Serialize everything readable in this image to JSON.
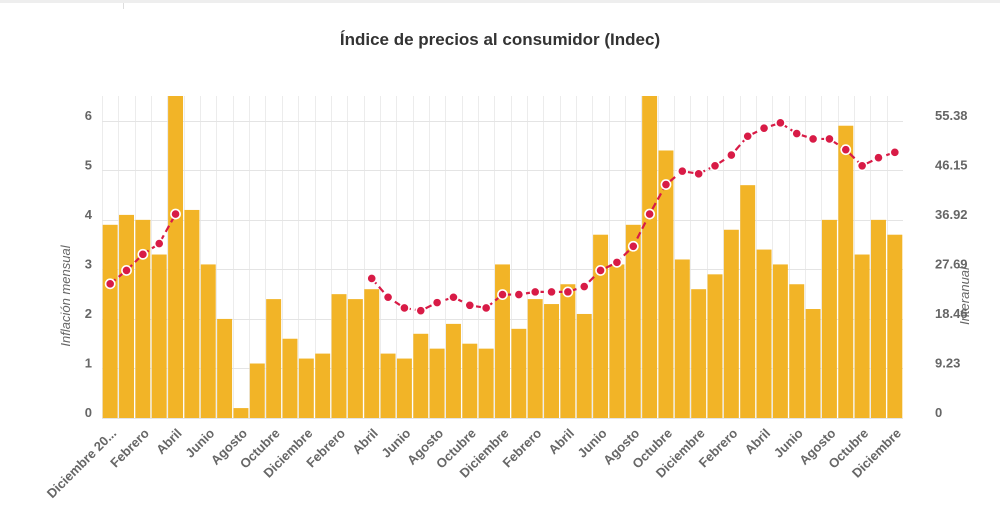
{
  "chart_data": {
    "type": "bar",
    "title": "Índice de precios al consumidor (Indec)",
    "ylabel_left": "Inflación mensual",
    "ylabel_right": "Interanual",
    "ylim_left": [
      0,
      6.5
    ],
    "ylim_right": [
      0,
      60
    ],
    "yticks_left": [
      "0",
      "1",
      "2",
      "3",
      "4",
      "5",
      "6"
    ],
    "yticks_right": [
      "0",
      "9.23",
      "18.46",
      "27.69",
      "36.92",
      "46.15",
      "55.38"
    ],
    "grid": true,
    "x_tick_labels": [
      {
        "index": 0,
        "label": "Diciembre 20..."
      },
      {
        "index": 2,
        "label": "Febrero"
      },
      {
        "index": 4,
        "label": "Abril"
      },
      {
        "index": 6,
        "label": "Junio"
      },
      {
        "index": 8,
        "label": "Agosto"
      },
      {
        "index": 10,
        "label": "Octubre"
      },
      {
        "index": 12,
        "label": "Diciembre"
      },
      {
        "index": 14,
        "label": "Febrero"
      },
      {
        "index": 16,
        "label": "Abril"
      },
      {
        "index": 18,
        "label": "Junio"
      },
      {
        "index": 20,
        "label": "Agosto"
      },
      {
        "index": 22,
        "label": "Octubre"
      },
      {
        "index": 24,
        "label": "Diciembre"
      },
      {
        "index": 26,
        "label": "Febrero"
      },
      {
        "index": 28,
        "label": "Abril"
      },
      {
        "index": 30,
        "label": "Junio"
      },
      {
        "index": 32,
        "label": "Agosto"
      },
      {
        "index": 34,
        "label": "Octubre"
      },
      {
        "index": 36,
        "label": "Diciembre"
      },
      {
        "index": 38,
        "label": "Febrero"
      },
      {
        "index": 40,
        "label": "Abril"
      },
      {
        "index": 42,
        "label": "Junio"
      },
      {
        "index": 44,
        "label": "Agosto"
      },
      {
        "index": 46,
        "label": "Octubre"
      },
      {
        "index": 48,
        "label": "Diciembre"
      }
    ],
    "series": [
      {
        "kind": "bar",
        "axis": "left",
        "color": "#f2b427",
        "values": [
          3.9,
          4.1,
          4.0,
          3.3,
          6.7,
          4.2,
          3.1,
          2.0,
          0.2,
          1.1,
          2.4,
          1.6,
          1.2,
          1.3,
          2.5,
          2.4,
          2.6,
          1.3,
          1.2,
          1.7,
          1.4,
          1.9,
          1.5,
          1.4,
          3.1,
          1.8,
          2.4,
          2.3,
          2.7,
          2.1,
          3.7,
          3.1,
          3.9,
          6.5,
          5.4,
          3.2,
          2.6,
          2.9,
          3.8,
          4.7,
          3.4,
          3.1,
          2.7,
          2.2,
          4.0,
          5.9,
          3.3,
          4.0,
          3.7
        ]
      },
      {
        "kind": "line",
        "axis": "right",
        "color": "#d81b46",
        "values": [
          25.0,
          27.5,
          30.5,
          32.5,
          38.0,
          null,
          null,
          null,
          null,
          null,
          null,
          null,
          null,
          null,
          null,
          null,
          26.0,
          22.5,
          20.5,
          20.0,
          21.5,
          22.5,
          21.0,
          20.5,
          23.0,
          23.0,
          23.5,
          23.5,
          23.5,
          24.5,
          27.5,
          29.0,
          32.0,
          38.0,
          43.5,
          46.0,
          45.5,
          47.0,
          49.0,
          52.5,
          54.0,
          55.0,
          53.0,
          52.0,
          52.0,
          50.0,
          47.0,
          48.5,
          49.5
        ]
      }
    ]
  }
}
